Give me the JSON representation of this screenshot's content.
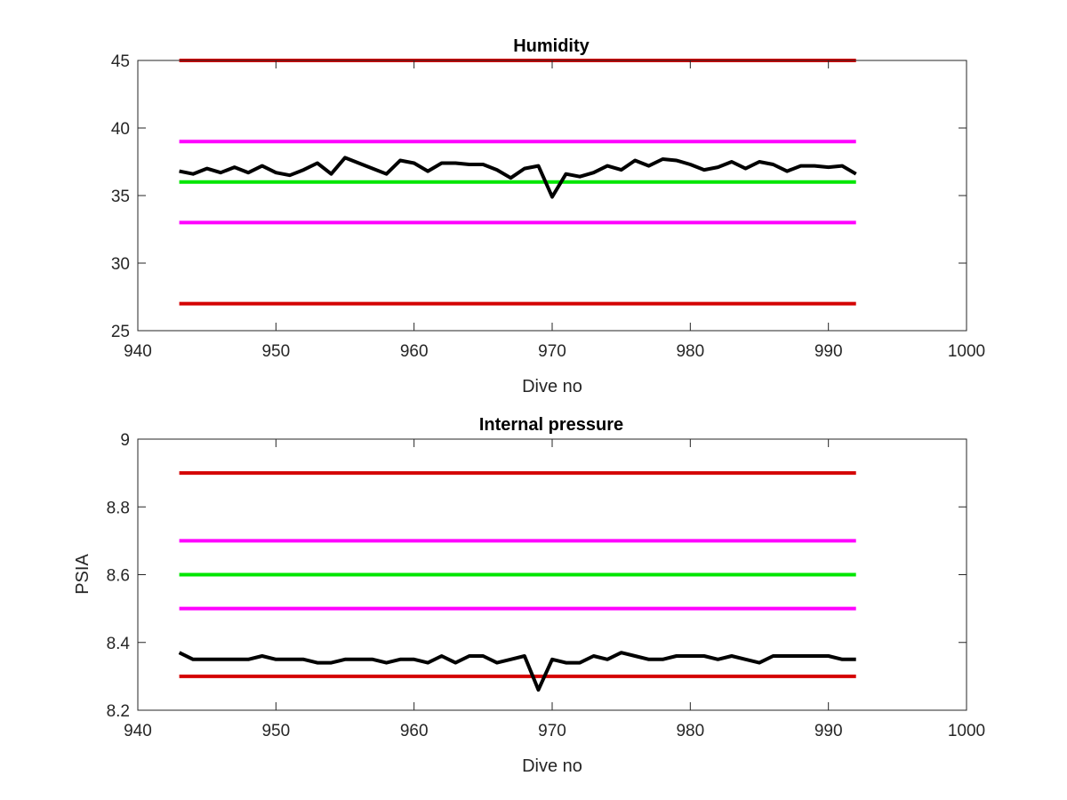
{
  "chart_data": [
    {
      "type": "line",
      "title": "Humidity",
      "xlabel": "Dive no",
      "ylabel": "",
      "xlim": [
        940,
        1000
      ],
      "ylim": [
        25,
        45
      ],
      "xticks": [
        940,
        950,
        960,
        970,
        980,
        990,
        1000
      ],
      "yticks": [
        25,
        30,
        35,
        40,
        45
      ],
      "grid": false,
      "legend": "none",
      "series": [
        {
          "color": "#d40000",
          "x": [
            943,
            992
          ],
          "y": [
            45,
            45
          ]
        },
        {
          "color": "#ff00ff",
          "x": [
            943,
            992
          ],
          "y": [
            39,
            39
          ]
        },
        {
          "color": "#00e600",
          "x": [
            943,
            992
          ],
          "y": [
            36,
            36
          ]
        },
        {
          "color": "#ff00ff",
          "x": [
            943,
            992
          ],
          "y": [
            33,
            33
          ]
        },
        {
          "color": "#d40000",
          "x": [
            943,
            992
          ],
          "y": [
            27,
            27
          ]
        },
        {
          "color": "#000000",
          "x": [
            943,
            944,
            945,
            946,
            947,
            948,
            949,
            950,
            951,
            952,
            953,
            954,
            955,
            956,
            957,
            958,
            959,
            960,
            961,
            962,
            963,
            964,
            965,
            966,
            967,
            968,
            969,
            970,
            971,
            972,
            973,
            974,
            975,
            976,
            977,
            978,
            979,
            980,
            981,
            982,
            983,
            984,
            985,
            986,
            987,
            988,
            989,
            990,
            991,
            992
          ],
          "y": [
            36.8,
            36.6,
            37.0,
            36.7,
            37.1,
            36.7,
            37.2,
            36.7,
            36.5,
            36.9,
            37.4,
            36.6,
            37.8,
            37.4,
            37.0,
            36.6,
            37.6,
            37.4,
            36.8,
            37.4,
            37.4,
            37.3,
            37.3,
            36.9,
            36.3,
            37.0,
            37.2,
            34.9,
            36.6,
            36.4,
            36.7,
            37.2,
            36.9,
            37.6,
            37.2,
            37.7,
            37.6,
            37.3,
            36.9,
            37.1,
            37.5,
            37.0,
            37.5,
            37.3,
            36.8,
            37.2,
            37.2,
            37.1,
            37.2,
            36.6
          ]
        }
      ]
    },
    {
      "type": "line",
      "title": "Internal pressure",
      "xlabel": "Dive no",
      "ylabel": "PSIA",
      "xlim": [
        940,
        1000
      ],
      "ylim": [
        8.2,
        9
      ],
      "xticks": [
        940,
        950,
        960,
        970,
        980,
        990,
        1000
      ],
      "yticks": [
        8.2,
        8.4,
        8.6,
        8.8,
        9
      ],
      "grid": false,
      "legend": "none",
      "series": [
        {
          "color": "#d40000",
          "x": [
            943,
            992
          ],
          "y": [
            8.9,
            8.9
          ]
        },
        {
          "color": "#ff00ff",
          "x": [
            943,
            992
          ],
          "y": [
            8.7,
            8.7
          ]
        },
        {
          "color": "#00e600",
          "x": [
            943,
            992
          ],
          "y": [
            8.6,
            8.6
          ]
        },
        {
          "color": "#ff00ff",
          "x": [
            943,
            992
          ],
          "y": [
            8.5,
            8.5
          ]
        },
        {
          "color": "#d40000",
          "x": [
            943,
            992
          ],
          "y": [
            8.3,
            8.3
          ]
        },
        {
          "color": "#000000",
          "x": [
            943,
            944,
            945,
            946,
            947,
            948,
            949,
            950,
            951,
            952,
            953,
            954,
            955,
            956,
            957,
            958,
            959,
            960,
            961,
            962,
            963,
            964,
            965,
            966,
            967,
            968,
            969,
            970,
            971,
            972,
            973,
            974,
            975,
            976,
            977,
            978,
            979,
            980,
            981,
            982,
            983,
            984,
            985,
            986,
            987,
            988,
            989,
            990,
            991,
            992
          ],
          "y": [
            8.37,
            8.35,
            8.35,
            8.35,
            8.35,
            8.35,
            8.36,
            8.35,
            8.35,
            8.35,
            8.34,
            8.34,
            8.35,
            8.35,
            8.35,
            8.34,
            8.35,
            8.35,
            8.34,
            8.36,
            8.34,
            8.36,
            8.36,
            8.34,
            8.35,
            8.36,
            8.26,
            8.35,
            8.34,
            8.34,
            8.36,
            8.35,
            8.37,
            8.36,
            8.35,
            8.35,
            8.36,
            8.36,
            8.36,
            8.35,
            8.36,
            8.35,
            8.34,
            8.36,
            8.36,
            8.36,
            8.36,
            8.36,
            8.35,
            8.35
          ]
        }
      ]
    }
  ]
}
